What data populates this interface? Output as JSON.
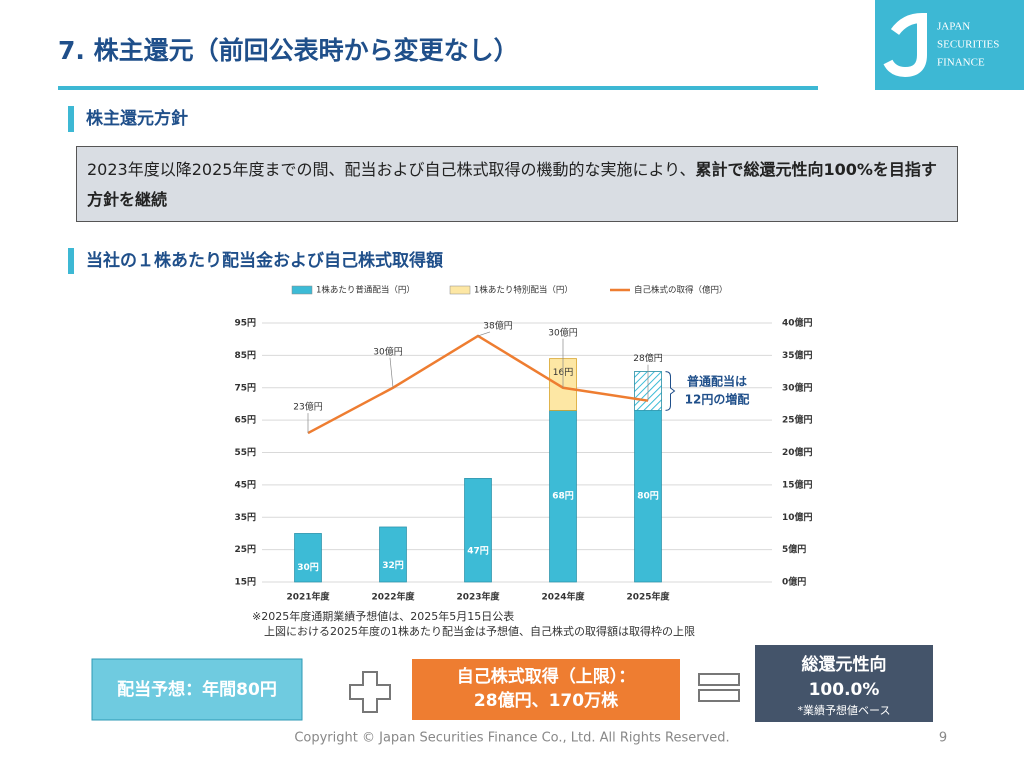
{
  "header": {
    "title": "7.  株主還元（前回公表時から変更なし）",
    "logo_lines": [
      "JAPAN",
      "SECURITIES",
      "FINANCE"
    ]
  },
  "section1": {
    "heading": "株主還元方針",
    "policy_text": "2023年度以降2025年度までの間、配当および自己株式取得の機動的な実施により、",
    "policy_bold": "累計で総還元性向100%を目指す方針を継続"
  },
  "section2": {
    "heading": "当社の１株あたり配当金および自己株式取得額"
  },
  "chart_data": {
    "type": "combo",
    "categories": [
      "2021年度",
      "2022年度",
      "2023年度",
      "2024年度",
      "2025年度"
    ],
    "series": [
      {
        "name": "1株あたり普通配当（円）",
        "color": "#3dbbd6",
        "values": [
          30,
          32,
          47,
          68,
          80
        ],
        "value_labels": [
          "30円",
          "32円",
          "47円",
          "68円",
          "80円"
        ]
      },
      {
        "name": "1株あたり特別配当（円）",
        "color": "#fde7a4",
        "values": [
          null,
          null,
          null,
          16,
          null
        ],
        "value_labels": [
          null,
          null,
          null,
          "16円",
          null
        ]
      },
      {
        "name": "自己株式の取得（億円）",
        "color": "#ee7d31",
        "axis": "y2",
        "values": [
          23,
          30,
          38,
          30,
          28
        ],
        "value_labels": [
          "23億円",
          "30億円",
          "38億円",
          "30億円",
          "28億円"
        ]
      }
    ],
    "ylim": [
      15,
      95
    ],
    "yticks": [
      {
        "value": 15,
        "label": "15円"
      },
      {
        "value": 25,
        "label": "25円"
      },
      {
        "value": 35,
        "label": "35円"
      },
      {
        "value": 45,
        "label": "45円"
      },
      {
        "value": 55,
        "label": "55円"
      },
      {
        "value": 65,
        "label": "65円"
      },
      {
        "value": 75,
        "label": "75円"
      },
      {
        "value": 85,
        "label": "85円"
      },
      {
        "value": 95,
        "label": "95円"
      }
    ],
    "y2lim": [
      0,
      40
    ],
    "y2ticks": [
      {
        "value": 0,
        "label": "0億円"
      },
      {
        "value": 5,
        "label": "5億円"
      },
      {
        "value": 10,
        "label": "10億円"
      },
      {
        "value": 15,
        "label": "15億円"
      },
      {
        "value": 20,
        "label": "20億円"
      },
      {
        "value": 25,
        "label": "25億円"
      },
      {
        "value": 30,
        "label": "30億円"
      },
      {
        "value": 35,
        "label": "35億円"
      },
      {
        "value": 40,
        "label": "40億円"
      }
    ],
    "grid": true,
    "hatch_last_increase": true,
    "annotation": [
      "普通配当は",
      "12円の増配"
    ],
    "notes": [
      "※2025年度通期業績予想値は、2025年5月15日公表",
      "上図における2025年度の1株あたり配当金は予想値、自己株式の取得額は取得枠の上限"
    ]
  },
  "summary": {
    "dividend": "配当予想：年間80円",
    "buyback_lines": [
      "自己株式取得（上限）：",
      "28億円、170万株"
    ],
    "payout_title": "総還元性向",
    "payout_value": "100.0%",
    "payout_note": "*業績予想値ベース"
  },
  "footer": {
    "copyright": "Copyright © Japan Securities Finance Co., Ltd. All Rights Reserved.",
    "page": "9"
  }
}
